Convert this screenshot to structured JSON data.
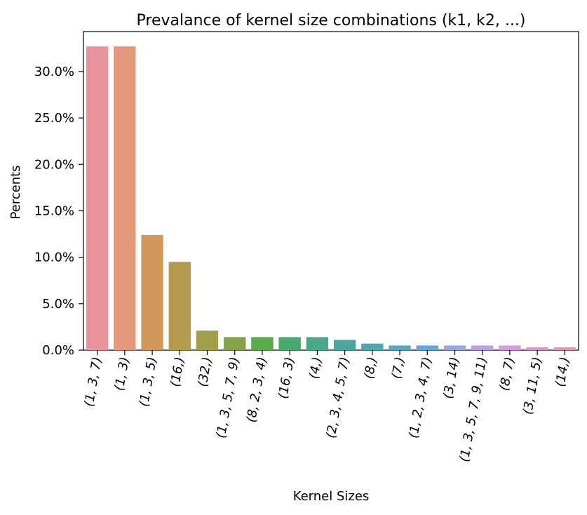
{
  "chart_data": {
    "type": "bar",
    "title": "Prevalance of kernel size combinations (k1, k2, ...)",
    "xlabel": "Kernel Sizes",
    "ylabel": "Percents",
    "categories": [
      "(1, 3, 7)",
      "(1, 3)",
      "(1, 3, 5)",
      "(16,)",
      "(32,)",
      "(1, 3, 5, 7, 9)",
      "(8, 2, 3, 4)",
      "(16, 3)",
      "(4,)",
      "(2, 3, 4, 5, 7)",
      "(8,)",
      "(7,)",
      "(1, 2, 3, 4, 7)",
      "(3, 14)",
      "(1, 3, 5, 7, 9, 11)",
      "(8, 7)",
      "(3, 11, 5)",
      "(14,)"
    ],
    "values": [
      32.7,
      32.7,
      12.4,
      9.5,
      2.1,
      1.4,
      1.4,
      1.4,
      1.4,
      1.1,
      0.7,
      0.5,
      0.5,
      0.5,
      0.5,
      0.5,
      0.3,
      0.3
    ],
    "ylim": [
      0,
      34.3
    ],
    "yticks": [
      0,
      5,
      10,
      15,
      20,
      25,
      30
    ],
    "ytick_labels": [
      "0.0%",
      "5.0%",
      "10.0%",
      "15.0%",
      "20.0%",
      "25.0%",
      "30.0%"
    ],
    "grid": false,
    "legend": "none",
    "colors": [
      "#e8929c",
      "#e4977a",
      "#d1975a",
      "#b59a4d",
      "#a19d49",
      "#84a246",
      "#59ab47",
      "#47a96b",
      "#48a98a",
      "#4aa79d",
      "#4da9ad",
      "#51a9c4",
      "#63a8dd",
      "#99a6e3",
      "#baa0e7",
      "#d997e6",
      "#e093ca",
      "#e892b1"
    ]
  }
}
